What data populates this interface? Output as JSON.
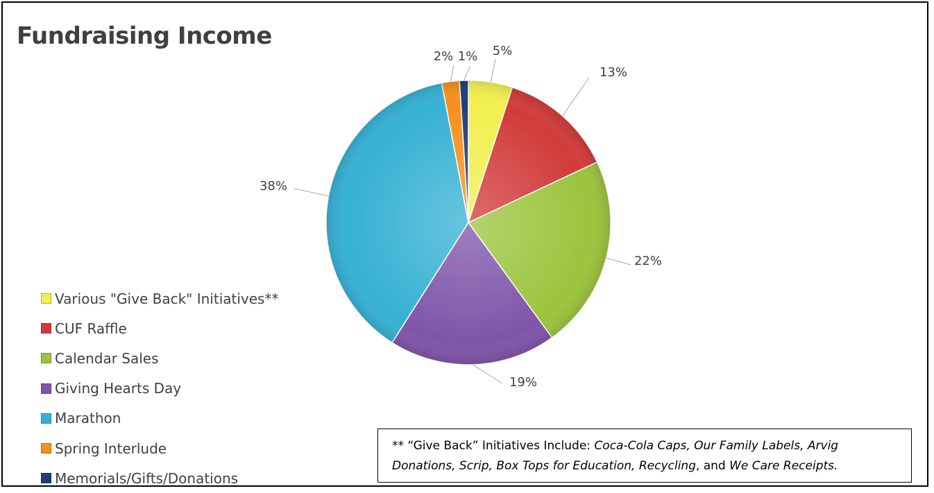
{
  "chart_data": {
    "type": "pie",
    "title": "Fundraising Income",
    "slices": [
      {
        "name": "Various \"Give Back\" Initiatives**",
        "value": 5,
        "label": "5%",
        "color": "#f2ef4f"
      },
      {
        "name": "CUF Raffle",
        "value": 13,
        "label": "13%",
        "color": "#d23b3b"
      },
      {
        "name": "Calendar Sales",
        "value": 22,
        "label": "22%",
        "color": "#9cc43e"
      },
      {
        "name": "Giving Hearts Day",
        "value": 19,
        "label": "19%",
        "color": "#7f55a9"
      },
      {
        "name": "Marathon",
        "value": 38,
        "label": "38%",
        "color": "#36b1d4"
      },
      {
        "name": "Spring Interlude",
        "value": 2,
        "label": "2%",
        "color": "#f5901e"
      },
      {
        "name": "Memorials/Gifts/Donations",
        "value": 1,
        "label": "1%",
        "color": "#1f3f74"
      }
    ],
    "legend_position": "left-bottom"
  },
  "note": {
    "prefix": "** “Give Back” Initiatives Include: ",
    "items_1": "Coca-Cola Caps, Our Family Labels, Arvig",
    "items_2": "Donations, Scrip, Box Tops for Education, Recycling",
    "middle": ", and ",
    "items_3": "We Care Receipts."
  }
}
